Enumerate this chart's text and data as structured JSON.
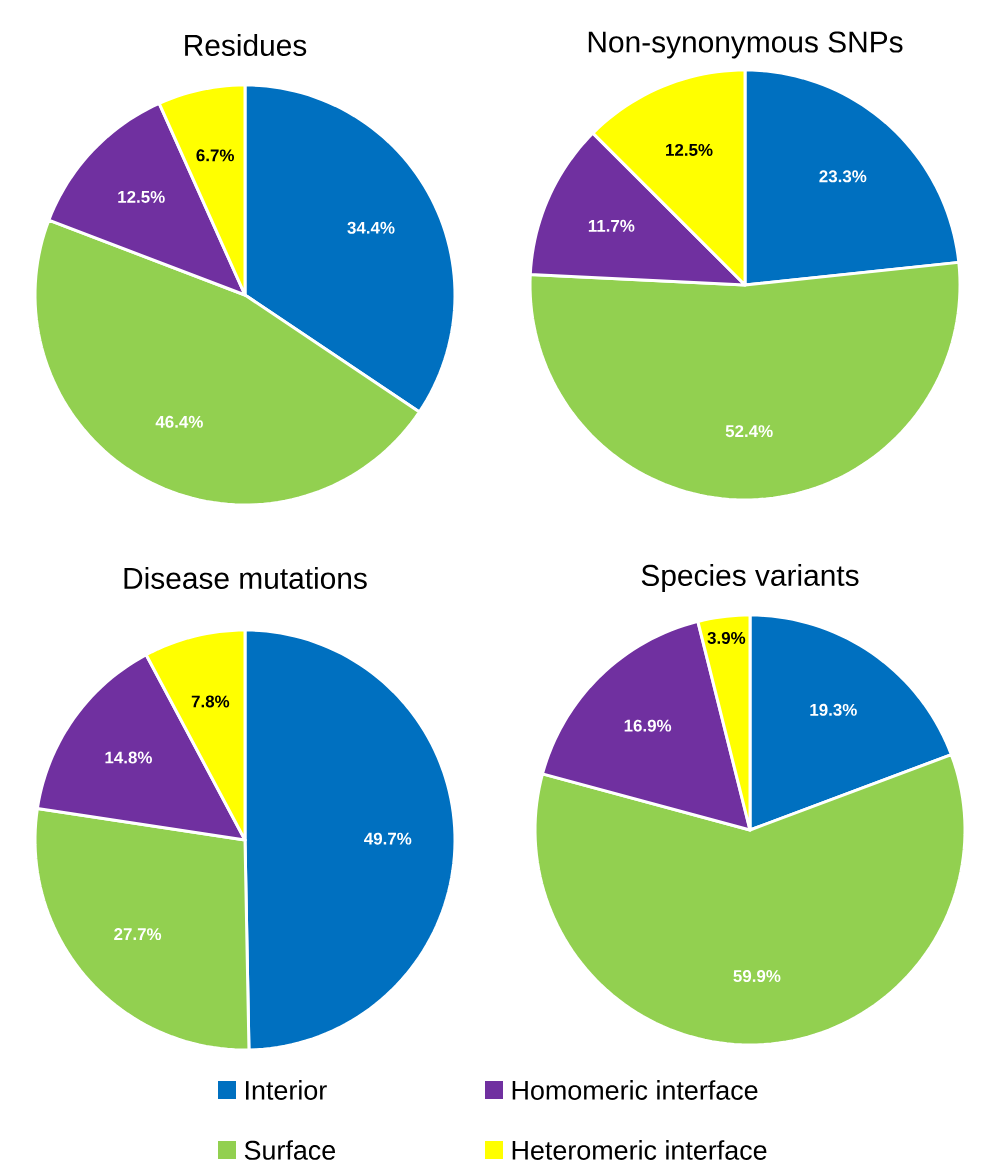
{
  "chart_data": [
    {
      "type": "pie",
      "title": "Residues",
      "values": [
        34.4,
        46.4,
        12.5,
        6.7
      ],
      "colors": [
        "#0070c0",
        "#92d050",
        "#7030a0",
        "#ffff00"
      ],
      "value_labels": [
        "34.4%",
        "46.4%",
        "12.5%",
        "6.7%"
      ]
    },
    {
      "type": "pie",
      "title": "Non-synonymous SNPs",
      "values": [
        23.3,
        52.4,
        11.7,
        12.5
      ],
      "colors": [
        "#0070c0",
        "#92d050",
        "#7030a0",
        "#ffff00"
      ],
      "value_labels": [
        "23.3%",
        "52.4%",
        "11.7%",
        "12.5%"
      ]
    },
    {
      "type": "pie",
      "title": "Disease mutations",
      "values": [
        49.7,
        27.7,
        14.8,
        7.8
      ],
      "colors": [
        "#0070c0",
        "#92d050",
        "#7030a0",
        "#ffff00"
      ],
      "value_labels": [
        "49.7%",
        "27.7%",
        "14.8%",
        "7.8%"
      ]
    },
    {
      "type": "pie",
      "title": "Species variants",
      "categories": [
        "Interior",
        "Surface",
        "Homomeric interface",
        "Heteromeric interface"
      ],
      "values": [
        19.3,
        59.9,
        16.9,
        3.9
      ],
      "colors": [
        "#0070c0",
        "#92d050",
        "#7030a0",
        "#ffff00"
      ],
      "value_labels": [
        "19.3%",
        "59.9%",
        "16.9%",
        "3.9%"
      ],
      "legend": "bottom"
    }
  ]
}
